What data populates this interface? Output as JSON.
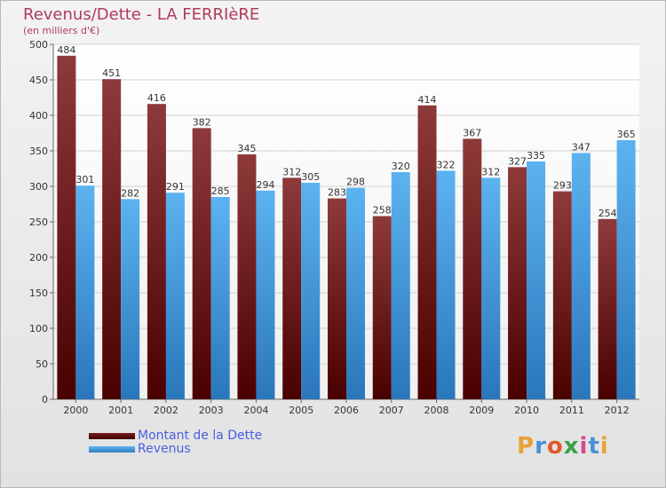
{
  "header": {
    "title": "Revenus/Dette - LA FERRIèRE",
    "subtitle": "(en milliers d'€)"
  },
  "legend": {
    "items": [
      {
        "label": "Montant de la Dette",
        "color": "#7a1c1c"
      },
      {
        "label": "Revenus",
        "color": "#4aa3e4"
      }
    ]
  },
  "logo": {
    "text": "Proxiti",
    "letters": [
      "P",
      "r",
      "o",
      "x",
      "i",
      "t",
      "i"
    ],
    "colors": [
      "#e8a23a",
      "#4a8fd8",
      "#e05a2a",
      "#3aa04a",
      "#d84a8a",
      "#4a8fd8",
      "#e8a23a"
    ]
  },
  "chart_data": {
    "type": "bar",
    "categories": [
      "2000",
      "2001",
      "2002",
      "2003",
      "2004",
      "2005",
      "2006",
      "2007",
      "2008",
      "2009",
      "2010",
      "2011",
      "2012"
    ],
    "series": [
      {
        "name": "Montant de la Dette",
        "color": "#7a1c1c",
        "values": [
          484,
          451,
          416,
          382,
          345,
          312,
          283,
          258,
          414,
          367,
          327,
          293,
          254
        ]
      },
      {
        "name": "Revenus",
        "color": "#4aa3e4",
        "values": [
          301,
          282,
          291,
          285,
          294,
          305,
          298,
          320,
          322,
          312,
          335,
          347,
          365
        ]
      }
    ],
    "title": "Revenus/Dette - LA FERRIèRE",
    "ylabel": "(en milliers d'€)",
    "ylim": [
      0,
      500
    ],
    "yticks": [
      0,
      50,
      100,
      150,
      200,
      250,
      300,
      350,
      400,
      450,
      500
    ],
    "grid": true
  }
}
